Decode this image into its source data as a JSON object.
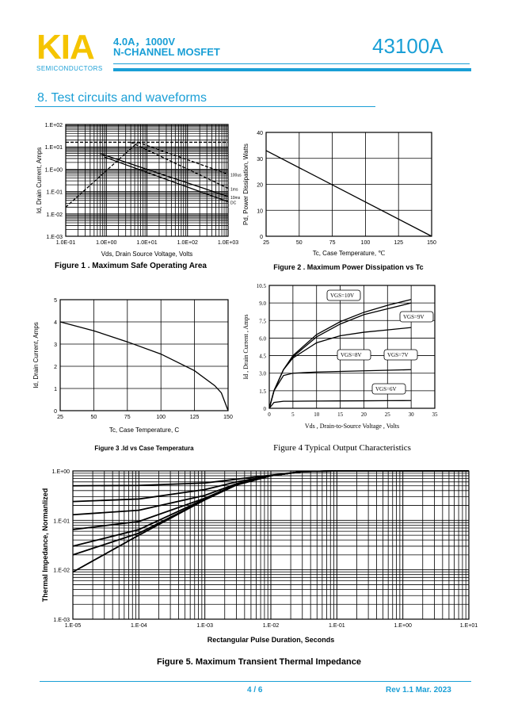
{
  "header": {
    "logo": "KIA",
    "logo_sub": "SEMICONDUCTORS",
    "spec_line1": "4.0A，1000V",
    "spec_line2": "N-CHANNEL MOSFET",
    "part_number": "43100A",
    "brand_color": "#f5c400",
    "accent_color": "#1a9fd6"
  },
  "section_title": "8. Test circuits and waveforms",
  "footer": {
    "page": "4 / 6",
    "revision": "Rev 1.1   Mar. 2023"
  },
  "chart_data": [
    {
      "id": "fig1",
      "type": "line",
      "title": "Figure 1 . Maximum Safe Operating Area",
      "xlabel": "Vds, Drain Source Voltage, Volts",
      "ylabel": "Id, Drain Current, Amps",
      "xscale": "log",
      "yscale": "log",
      "xlim": [
        0.1,
        1000
      ],
      "ylim": [
        0.001,
        100
      ],
      "xticks": [
        "1.0E-01",
        "1.0E+00",
        "1.0E+01",
        "1.0E+02",
        "1.0E+03"
      ],
      "yticks": [
        "1.E-03",
        "1.E-02",
        "1.E-01",
        "1.E+00",
        "1.E+01",
        "1.E+02"
      ],
      "grid": true,
      "series": [
        {
          "name": "",
          "dash": true,
          "x": [
            0.1,
            6
          ],
          "y": [
            0.02,
            16
          ]
        },
        {
          "name": "",
          "dash": true,
          "x": [
            0.1,
            1000
          ],
          "y": [
            16,
            16
          ]
        },
        {
          "name": "100us",
          "dash": true,
          "x": [
            6,
            1000
          ],
          "y": [
            16,
            0.6
          ]
        },
        {
          "name": "1ms",
          "dash": true,
          "x": [
            4,
            1000
          ],
          "y": [
            16,
            0.14
          ]
        },
        {
          "name": "10ms",
          "dash": false,
          "x": [
            0.7,
            1000
          ],
          "y": [
            5,
            0.06
          ]
        },
        {
          "name": "DC",
          "dash": false,
          "x": [
            0.9,
            1000
          ],
          "y": [
            3.5,
            0.035
          ]
        }
      ]
    },
    {
      "id": "fig2",
      "type": "line",
      "title": "Figure 2 . Maximum Power Dissipation vs  Tc",
      "xlabel": "Tc, Case Temperature, ℃",
      "ylabel": "Pd, Power Dissipation, Watts",
      "xlim": [
        25,
        150
      ],
      "ylim": [
        0,
        40
      ],
      "xticks": [
        "25",
        "50",
        "75",
        "100",
        "125",
        "150"
      ],
      "yticks": [
        "0",
        "10",
        "20",
        "30",
        "40"
      ],
      "grid": true,
      "series": [
        {
          "name": "",
          "x": [
            25,
            150
          ],
          "y": [
            33,
            0
          ]
        }
      ]
    },
    {
      "id": "fig3",
      "type": "line",
      "title": "Figure 3 .Id vs Case Temperatura",
      "xlabel": "Tc, Case Temperature, C",
      "ylabel": "Id, Drain Current, Amps",
      "xlim": [
        25,
        150
      ],
      "ylim": [
        0,
        5
      ],
      "xticks": [
        "25",
        "50",
        "75",
        "100",
        "125",
        "150"
      ],
      "yticks": [
        "0",
        "1",
        "2",
        "3",
        "4",
        "5"
      ],
      "grid": true,
      "series": [
        {
          "name": "",
          "x": [
            25,
            50,
            75,
            100,
            125,
            140,
            145,
            150
          ],
          "y": [
            4,
            3.6,
            3.1,
            2.55,
            1.8,
            1.13,
            0.8,
            0
          ]
        }
      ]
    },
    {
      "id": "fig4",
      "type": "line",
      "title": "Figure    4    Typical Output Characteristics",
      "xlabel": "Vds , Drain-to-Source Voltage , Volts",
      "ylabel": "Id , Drain Current , Amps",
      "xlim": [
        0,
        35
      ],
      "ylim": [
        0,
        10.5
      ],
      "xticks": [
        "0",
        "5",
        "10",
        "15",
        "20",
        "25",
        "30",
        "35"
      ],
      "yticks": [
        "0",
        "1.5",
        "3.0",
        "4.5",
        "6.0",
        "7.5",
        "9.0",
        "10.5"
      ],
      "grid": true,
      "series": [
        {
          "name": "VGS=10V",
          "x": [
            0,
            1,
            3,
            5,
            10,
            15,
            20,
            25,
            30
          ],
          "y": [
            0,
            1.5,
            3.3,
            4.5,
            6.3,
            7.4,
            8.2,
            8.8,
            9.3
          ]
        },
        {
          "name": "VGS=9V",
          "x": [
            0,
            1,
            3,
            5,
            10,
            15,
            20,
            25,
            30
          ],
          "y": [
            0,
            1.5,
            3.3,
            4.4,
            6.1,
            7.2,
            8.0,
            8.5,
            9.0
          ]
        },
        {
          "name": "VGS=8V",
          "x": [
            0,
            1,
            3,
            5,
            10,
            15,
            20,
            25,
            30
          ],
          "y": [
            0,
            1.5,
            3.3,
            4.3,
            5.6,
            6.2,
            6.5,
            6.7,
            6.9
          ]
        },
        {
          "name": "VGS=7V",
          "x": [
            0,
            1,
            3,
            5,
            10,
            15,
            20,
            25,
            30
          ],
          "y": [
            0,
            1.5,
            2.8,
            3.0,
            3.1,
            3.15,
            3.2,
            3.25,
            3.3
          ]
        },
        {
          "name": "VGS=6V",
          "x": [
            0,
            1,
            3,
            5,
            10,
            15,
            20,
            25,
            30
          ],
          "y": [
            0,
            0.5,
            0.6,
            0.6,
            0.62,
            0.63,
            0.64,
            0.65,
            0.66
          ]
        }
      ]
    },
    {
      "id": "fig5",
      "type": "line",
      "title": "Figure 5. Maximum Transient Thermal Impedance",
      "xlabel": "Rectangular Pulse Duration, Seconds",
      "ylabel": "Thermal Impedance, Normanlized",
      "xscale": "log",
      "yscale": "log",
      "xlim": [
        1e-05,
        10
      ],
      "ylim": [
        0.001,
        1
      ],
      "xticks": [
        "1.E-05",
        "1.E-04",
        "1.E-03",
        "1.E-02",
        "1.E-01",
        "1.E+00",
        "1.E+01"
      ],
      "yticks": [
        "1.E-03",
        "1.E-02",
        "1.E-01",
        "1.E+00"
      ],
      "grid": true,
      "series": [
        {
          "name": "",
          "x": [
            1e-05,
            0.0001,
            0.001,
            0.003,
            0.01,
            0.03,
            0.1,
            10
          ],
          "y": [
            0.5,
            0.51,
            0.57,
            0.68,
            0.82,
            0.97,
            1,
            1
          ]
        },
        {
          "name": "",
          "x": [
            1e-05,
            0.0001,
            0.001,
            0.003,
            0.01,
            0.03,
            0.1,
            10
          ],
          "y": [
            0.24,
            0.27,
            0.42,
            0.6,
            0.8,
            0.97,
            1,
            1
          ]
        },
        {
          "name": "",
          "x": [
            1e-05,
            0.0001,
            0.001,
            0.003,
            0.01,
            0.03,
            0.1,
            10
          ],
          "y": [
            0.13,
            0.16,
            0.32,
            0.55,
            0.8,
            0.97,
            1,
            1
          ]
        },
        {
          "name": "",
          "x": [
            1e-05,
            0.0001,
            0.001,
            0.003,
            0.01,
            0.03,
            0.1,
            10
          ],
          "y": [
            0.065,
            0.095,
            0.28,
            0.53,
            0.8,
            0.97,
            1,
            1
          ]
        },
        {
          "name": "",
          "x": [
            1e-05,
            0.0001,
            0.001,
            0.003,
            0.01,
            0.03,
            0.1,
            10
          ],
          "y": [
            0.03,
            0.065,
            0.27,
            0.52,
            0.8,
            0.97,
            1,
            1
          ]
        },
        {
          "name": "",
          "x": [
            1e-05,
            0.0001,
            0.001,
            0.003,
            0.01,
            0.03,
            0.1,
            10
          ],
          "y": [
            0.02,
            0.055,
            0.26,
            0.52,
            0.8,
            0.97,
            1,
            1
          ]
        },
        {
          "name": "",
          "x": [
            1e-05,
            0.0001,
            0.001,
            0.003,
            0.01,
            0.03,
            0.1,
            10
          ],
          "y": [
            0.009,
            0.05,
            0.26,
            0.52,
            0.8,
            0.97,
            1,
            1
          ]
        }
      ]
    }
  ]
}
